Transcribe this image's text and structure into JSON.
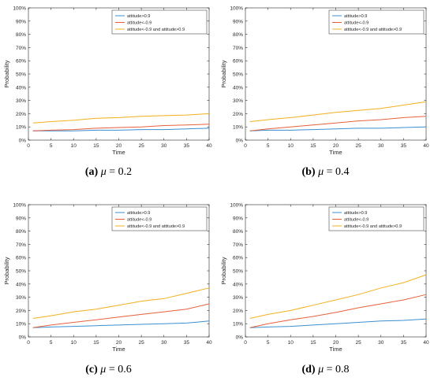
{
  "chart_data": [
    {
      "type": "line",
      "caption": {
        "letter": "(a)",
        "symbol": "μ",
        "rest": " = 0.2"
      },
      "xlabel": "Time",
      "ylabel": "Probability",
      "xlim": [
        0,
        40
      ],
      "ylim": [
        0,
        100
      ],
      "xticks": [
        "0",
        "5",
        "10",
        "15",
        "20",
        "25",
        "30",
        "35",
        "40"
      ],
      "yticks": [
        "0%",
        "10%",
        "20%",
        "30%",
        "40%",
        "50%",
        "60%",
        "70%",
        "80%",
        "90%",
        "100%"
      ],
      "legend_position": "top-right",
      "grid": false,
      "series": [
        {
          "name": "attitude>0.9",
          "color": "#3a8fd0",
          "x": [
            1,
            5,
            10,
            15,
            20,
            25,
            30,
            35,
            40
          ],
          "values": [
            7,
            7,
            7,
            7.5,
            7.5,
            8,
            8,
            8.5,
            9
          ]
        },
        {
          "name": "attitude<-0.9",
          "color": "#e8603a",
          "x": [
            1,
            5,
            10,
            15,
            20,
            25,
            30,
            35,
            40
          ],
          "values": [
            7,
            7.5,
            8,
            9,
            9.5,
            10,
            11,
            11.5,
            12
          ]
        },
        {
          "name": "attitude<-0.9 and attitude>0.9",
          "color": "#f2b01e",
          "x": [
            1,
            5,
            10,
            15,
            20,
            25,
            30,
            35,
            40
          ],
          "values": [
            13,
            14,
            15,
            16.5,
            17,
            18,
            18.5,
            19,
            20
          ]
        }
      ]
    },
    {
      "type": "line",
      "caption": {
        "letter": "(b)",
        "symbol": "μ",
        "rest": " = 0.4"
      },
      "xlabel": "Time",
      "ylabel": "Probability",
      "xlim": [
        0,
        40
      ],
      "ylim": [
        0,
        100
      ],
      "xticks": [
        "0",
        "5",
        "10",
        "15",
        "20",
        "25",
        "30",
        "35",
        "40"
      ],
      "yticks": [
        "0%",
        "10%",
        "20%",
        "30%",
        "40%",
        "50%",
        "60%",
        "70%",
        "80%",
        "90%",
        "100%"
      ],
      "legend_position": "top-right",
      "grid": false,
      "series": [
        {
          "name": "attitude>0.9",
          "color": "#3a8fd0",
          "x": [
            1,
            5,
            10,
            15,
            20,
            25,
            30,
            35,
            40
          ],
          "values": [
            7,
            7.5,
            7.5,
            8,
            8.5,
            9,
            9,
            9.5,
            10
          ]
        },
        {
          "name": "attitude<-0.9",
          "color": "#e8603a",
          "x": [
            1,
            5,
            10,
            15,
            20,
            25,
            30,
            35,
            40
          ],
          "values": [
            7,
            8.5,
            10,
            11.5,
            13,
            14.5,
            15.5,
            17,
            18
          ]
        },
        {
          "name": "attitude<-0.9 and attitude>0.9",
          "color": "#f2b01e",
          "x": [
            1,
            5,
            10,
            15,
            20,
            25,
            30,
            35,
            40
          ],
          "values": [
            14,
            15.5,
            17,
            19,
            21,
            22.5,
            24,
            26.5,
            29
          ]
        }
      ]
    },
    {
      "type": "line",
      "caption": {
        "letter": "(c)",
        "symbol": "μ",
        "rest": " = 0.6"
      },
      "xlabel": "Time",
      "ylabel": "Probability",
      "xlim": [
        0,
        40
      ],
      "ylim": [
        0,
        100
      ],
      "xticks": [
        "0",
        "5",
        "10",
        "15",
        "20",
        "25",
        "30",
        "35",
        "40"
      ],
      "yticks": [
        "0%",
        "10%",
        "20%",
        "30%",
        "40%",
        "50%",
        "60%",
        "70%",
        "80%",
        "90%",
        "100%"
      ],
      "legend_position": "top-right",
      "grid": false,
      "series": [
        {
          "name": "attitude>0.9",
          "color": "#3a8fd0",
          "x": [
            1,
            5,
            10,
            15,
            20,
            25,
            30,
            35,
            40
          ],
          "values": [
            7,
            7.5,
            8,
            8.5,
            9,
            9.5,
            10,
            10.5,
            12
          ]
        },
        {
          "name": "attitude<-0.9",
          "color": "#e8603a",
          "x": [
            1,
            5,
            10,
            15,
            20,
            25,
            30,
            35,
            40
          ],
          "values": [
            7,
            9,
            11,
            13,
            15,
            17,
            19,
            21,
            25
          ]
        },
        {
          "name": "attitude<-0.9 and attitude>0.9",
          "color": "#f2b01e",
          "x": [
            1,
            5,
            10,
            15,
            20,
            25,
            30,
            35,
            40
          ],
          "values": [
            14,
            16,
            19,
            21,
            24,
            27,
            29,
            33,
            37
          ]
        }
      ]
    },
    {
      "type": "line",
      "caption": {
        "letter": "(d)",
        "symbol": "μ",
        "rest": " = 0.8"
      },
      "xlabel": "Time",
      "ylabel": "Probability",
      "xlim": [
        0,
        40
      ],
      "ylim": [
        0,
        100
      ],
      "xticks": [
        "0",
        "5",
        "10",
        "15",
        "20",
        "25",
        "30",
        "35",
        "40"
      ],
      "yticks": [
        "0%",
        "10%",
        "20%",
        "30%",
        "40%",
        "50%",
        "60%",
        "70%",
        "80%",
        "90%",
        "100%"
      ],
      "legend_position": "top-right",
      "grid": false,
      "series": [
        {
          "name": "attitude>0.9",
          "color": "#3a8fd0",
          "x": [
            1,
            5,
            10,
            15,
            20,
            25,
            30,
            35,
            40
          ],
          "values": [
            7,
            7.5,
            8,
            9,
            10,
            11,
            12,
            12.5,
            13.5
          ]
        },
        {
          "name": "attitude<-0.9",
          "color": "#e8603a",
          "x": [
            1,
            5,
            10,
            15,
            20,
            25,
            30,
            35,
            40
          ],
          "values": [
            7,
            10,
            13,
            15.5,
            18.5,
            22,
            25,
            28,
            32
          ]
        },
        {
          "name": "attitude<-0.9 and attitude>0.9",
          "color": "#f2b01e",
          "x": [
            1,
            5,
            10,
            15,
            20,
            25,
            30,
            35,
            40
          ],
          "values": [
            14,
            17,
            20,
            24,
            28,
            32,
            37,
            41,
            47
          ]
        }
      ]
    }
  ]
}
